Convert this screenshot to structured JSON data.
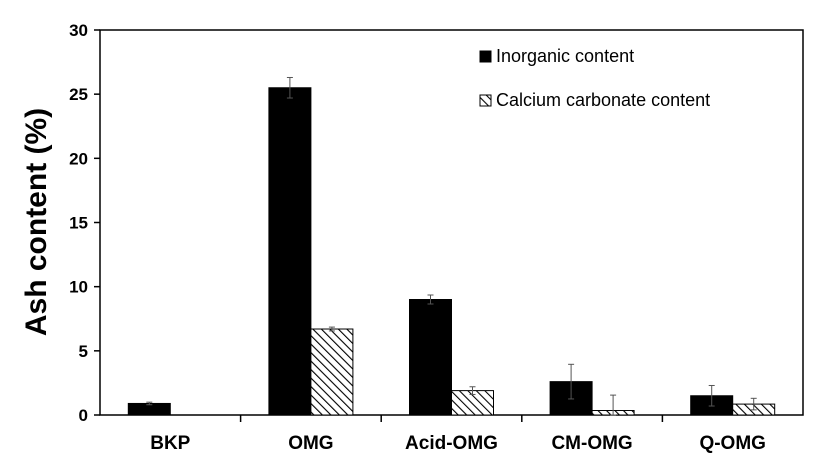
{
  "chart_data": {
    "type": "bar",
    "title": "",
    "xlabel": "",
    "ylabel": "Ash content (%)",
    "ylim": [
      0,
      30
    ],
    "yticks": [
      0,
      5,
      10,
      15,
      20,
      25,
      30
    ],
    "categories": [
      "BKP",
      "OMG",
      "Acid-OMG",
      "CM-OMG",
      "Q-OMG"
    ],
    "series": [
      {
        "name": "Inorganic content",
        "fill": "solid",
        "color": "#000000",
        "values": [
          0.9,
          25.5,
          9.0,
          2.6,
          1.5
        ],
        "errors": [
          0.1,
          0.8,
          0.35,
          1.35,
          0.8
        ]
      },
      {
        "name": "Calcium carbonate content",
        "fill": "hatched",
        "color": "#000000",
        "values": [
          0.0,
          6.7,
          1.9,
          0.35,
          0.85
        ],
        "errors": [
          0.0,
          0.15,
          0.3,
          1.2,
          0.45
        ]
      }
    ],
    "legend_position": "top-right",
    "grid": false
  }
}
